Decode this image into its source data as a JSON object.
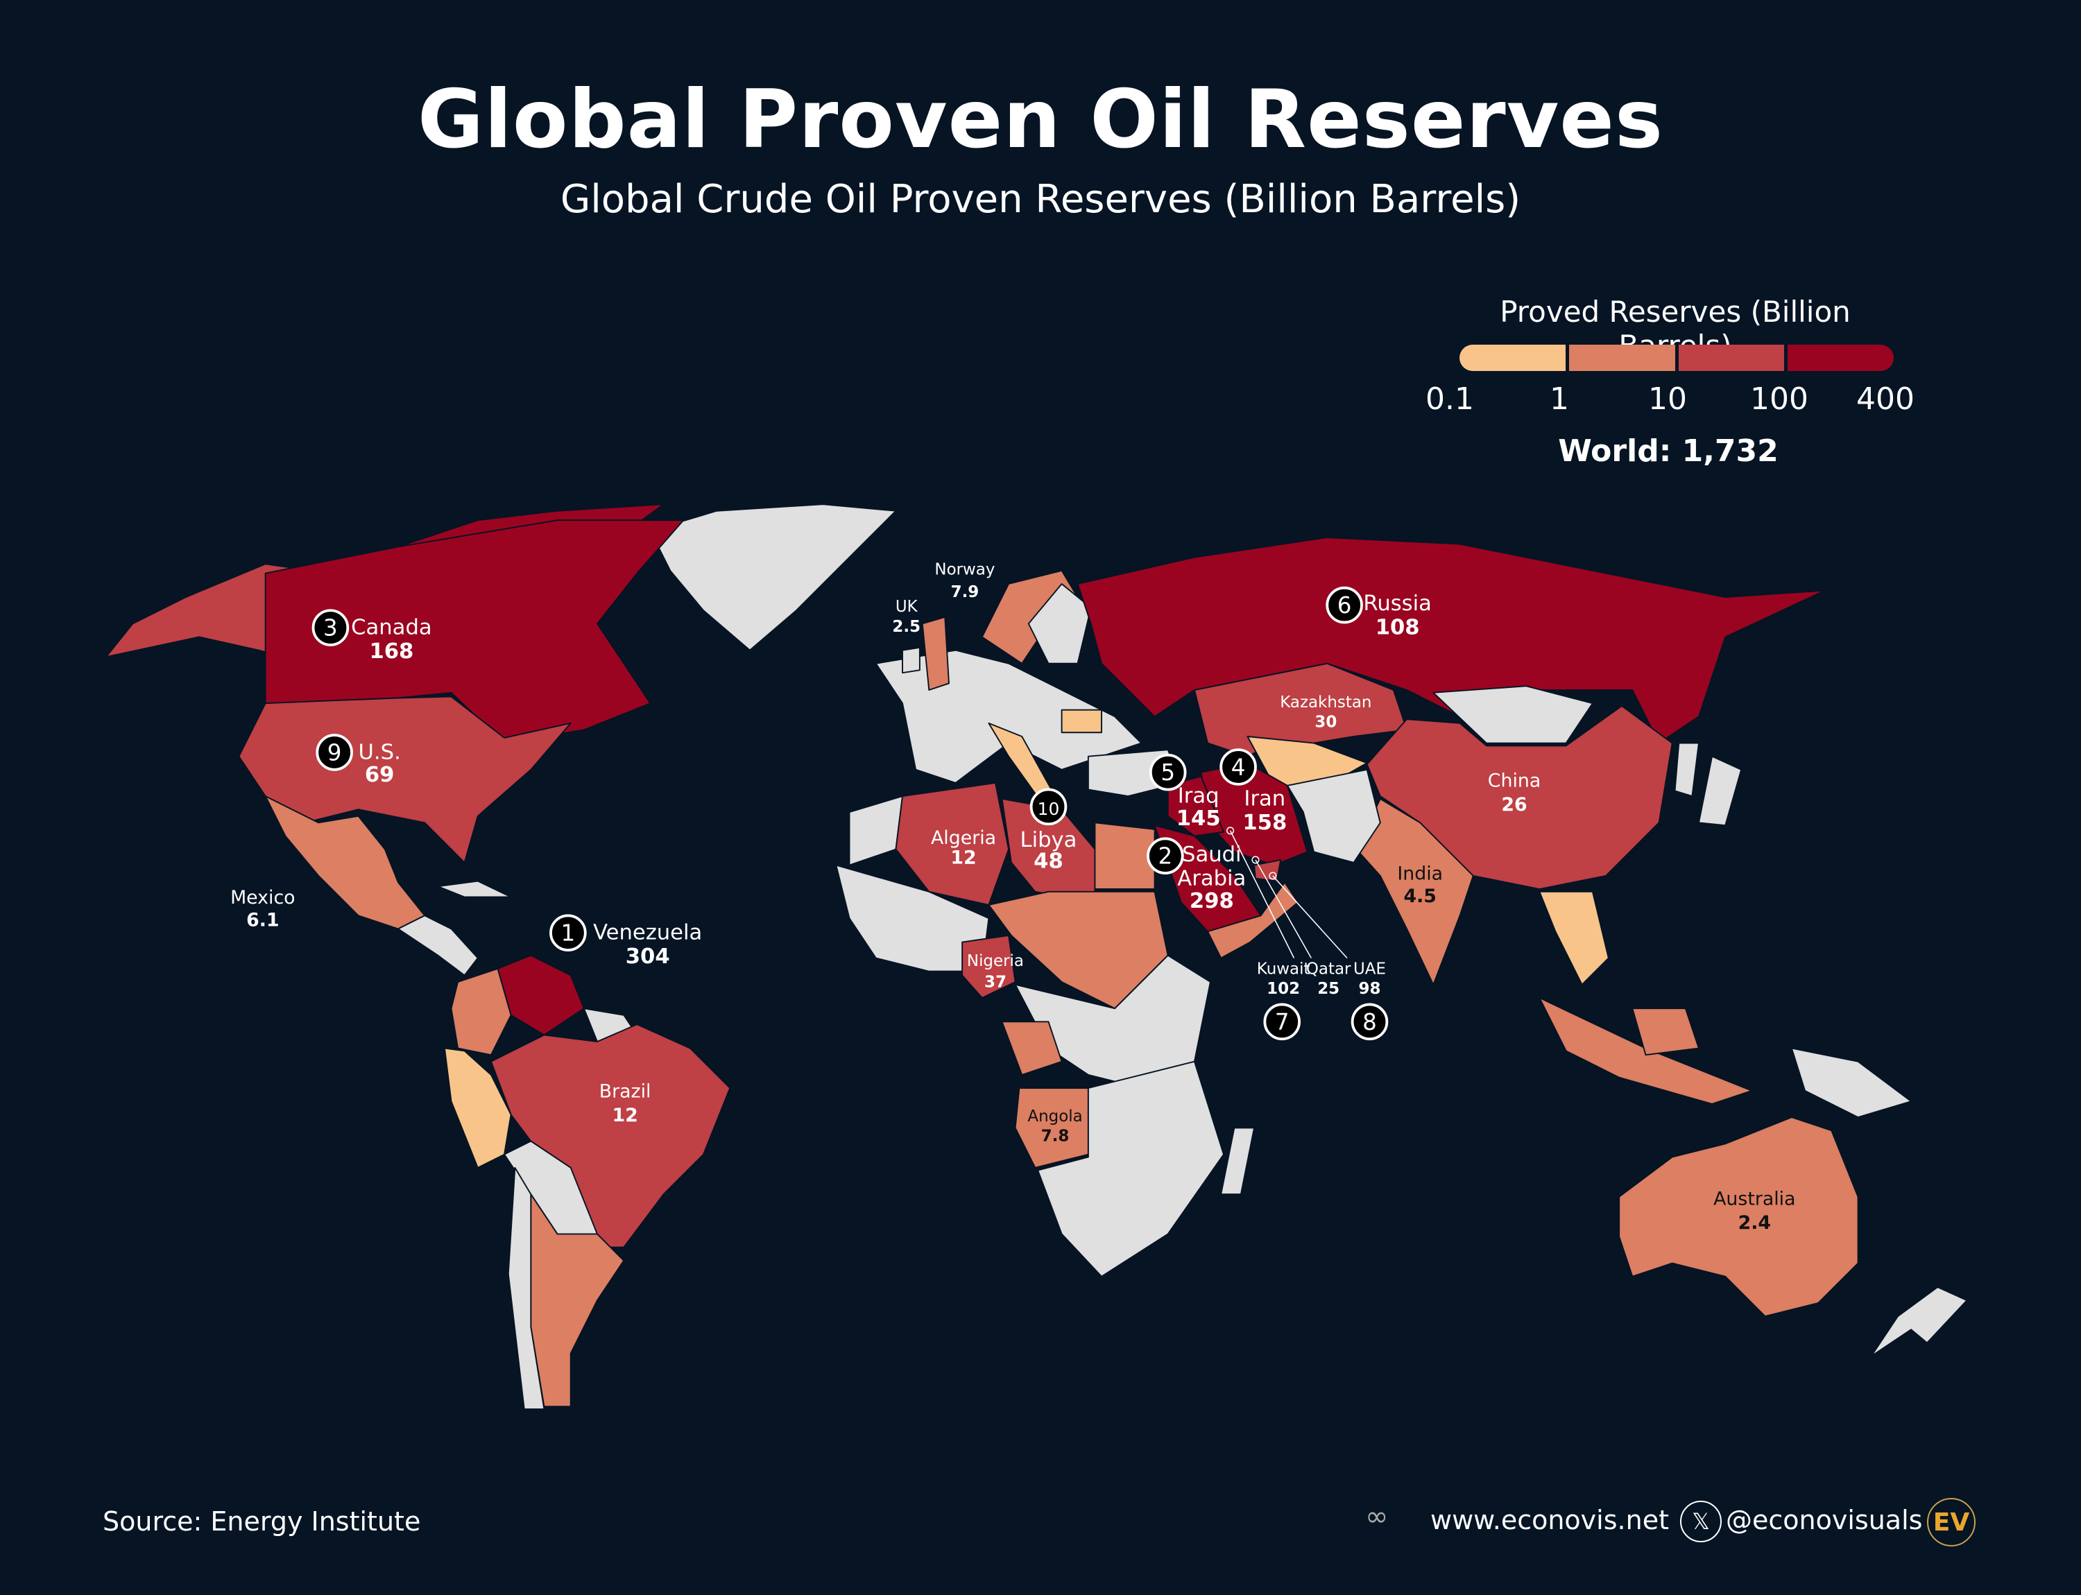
{
  "header": {
    "title": "Global Proven Oil Reserves",
    "subtitle": "Global Crude Oil Proven Reserves (Billion Barrels)"
  },
  "legend": {
    "title": "Proved Reserves (Billion Barrels)",
    "ticks": [
      "0.1",
      "1",
      "10",
      "100",
      "400"
    ],
    "colors": [
      "#f8c48a",
      "#dc7f62",
      "#bf4045",
      "#9b0420"
    ],
    "no_data_color": "#e0e0e0",
    "world_total": "World: 1,732"
  },
  "countries": [
    {
      "name": "Venezuela",
      "value": "304",
      "rank": "1"
    },
    {
      "name": "Saudi Arabia",
      "value": "298",
      "rank": "2"
    },
    {
      "name": "Canada",
      "value": "168",
      "rank": "3"
    },
    {
      "name": "Iran",
      "value": "158",
      "rank": "4"
    },
    {
      "name": "Iraq",
      "value": "145",
      "rank": "5"
    },
    {
      "name": "Russia",
      "value": "108",
      "rank": "6"
    },
    {
      "name": "Kuwait",
      "value": "102",
      "rank": "7"
    },
    {
      "name": "UAE",
      "value": "98",
      "rank": "8"
    },
    {
      "name": "U.S.",
      "value": "69",
      "rank": "9"
    },
    {
      "name": "Libya",
      "value": "48",
      "rank": "10"
    },
    {
      "name": "Nigeria",
      "value": "37",
      "rank": ""
    },
    {
      "name": "Kazakhstan",
      "value": "30",
      "rank": ""
    },
    {
      "name": "China",
      "value": "26",
      "rank": ""
    },
    {
      "name": "Qatar",
      "value": "25",
      "rank": ""
    },
    {
      "name": "Algeria",
      "value": "12",
      "rank": ""
    },
    {
      "name": "Brazil",
      "value": "12",
      "rank": ""
    },
    {
      "name": "Norway",
      "value": "7.9",
      "rank": ""
    },
    {
      "name": "Angola",
      "value": "7.8",
      "rank": ""
    },
    {
      "name": "Mexico",
      "value": "6.1",
      "rank": ""
    },
    {
      "name": "India",
      "value": "4.5",
      "rank": ""
    },
    {
      "name": "UK",
      "value": "2.5",
      "rank": ""
    },
    {
      "name": "Australia",
      "value": "2.4",
      "rank": ""
    }
  ],
  "footer": {
    "source": "Source: Energy Institute",
    "website": "www.econovis.net",
    "handle": "@econovisuals",
    "logo_text": "EV"
  }
}
